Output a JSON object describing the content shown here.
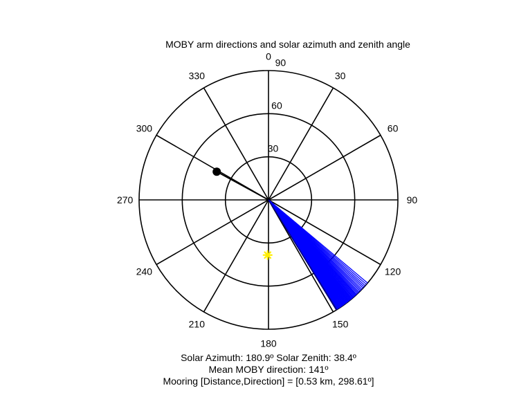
{
  "chart_data": {
    "type": "polar",
    "title": "MOBY arm directions and solar azimuth and zenith angle",
    "angle_zero": "top",
    "angle_direction": "clockwise",
    "angle_ticks": [
      0,
      30,
      60,
      90,
      120,
      150,
      180,
      210,
      240,
      270,
      300,
      330
    ],
    "angle_tick_labels": [
      "0",
      "30",
      "60",
      "90",
      "120",
      "150",
      "180",
      "210",
      "240",
      "270",
      "300",
      "330"
    ],
    "radial_range": [
      0,
      90
    ],
    "radial_ticks": [
      30,
      60,
      90
    ],
    "radial_tick_labels": [
      "30",
      "60",
      "90"
    ],
    "radial_tick_label_angle": 5,
    "series": [
      {
        "kind": "lines",
        "color": "#0000ff",
        "radius": 90,
        "directions": [
          130,
          130.8,
          131.6,
          132.3,
          133,
          133.7,
          134.3,
          134.9,
          135.5,
          136,
          136.5,
          137,
          137.4,
          137.8,
          138.2,
          138.6,
          139,
          139.3,
          139.7,
          140,
          140.3,
          140.6,
          140.9,
          141.2,
          141.5,
          141.8,
          142.1,
          142.4,
          142.7,
          143,
          143.3,
          143.6,
          143.9,
          144.2,
          144.5,
          144.8,
          145.1,
          145.4,
          145.7,
          146,
          146.3,
          146.6,
          146.9,
          147.2,
          147.5,
          147.8
        ]
      },
      {
        "kind": "lines",
        "color": "#00008b",
        "radius": 90,
        "directions": [
          148.1,
          148.4
        ]
      },
      {
        "kind": "line-marker",
        "color": "#000000",
        "direction": 298.61,
        "radius": 41
      },
      {
        "kind": "marker",
        "symbol": "asterisk",
        "color": "#ffee00",
        "azimuth": 180.9,
        "zenith": 38.4
      }
    ]
  },
  "caption": {
    "line1": "Solar Azimuth: 180.9º   Solar Zenith: 38.4º",
    "line2": "Mean MOBY direction: 141º",
    "line3": "Mooring [Distance,Direction] = [0.53 km, 298.61º]"
  }
}
